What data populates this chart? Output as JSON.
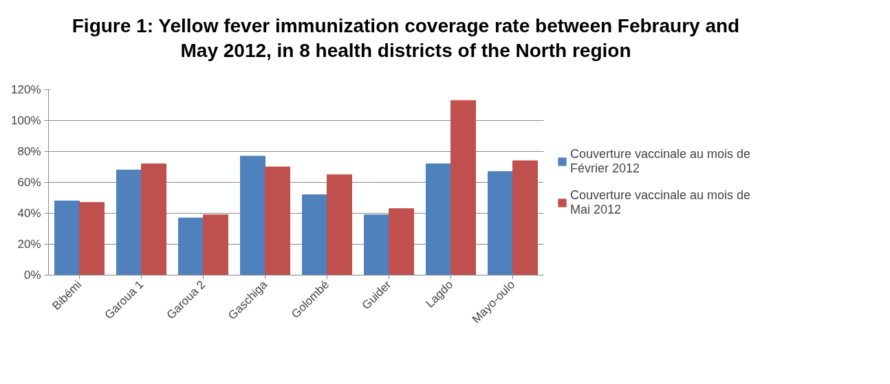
{
  "chart_data": {
    "type": "bar",
    "title": "Figure 1: Yellow fever immunization coverage rate between Febraury and May 2012, in 8 health districts of the North region",
    "categories": [
      "Bibémi",
      "Garoua 1",
      "Garoua 2",
      "Gaschiga",
      "Golombé",
      "Guider",
      "Lagdo",
      "Mayo-oulo"
    ],
    "series": [
      {
        "name": "Couverture vaccinale au mois de Février 2012",
        "color": "#4f81bd",
        "values": [
          48,
          68,
          37,
          77,
          52,
          39,
          72,
          67
        ]
      },
      {
        "name": "Couverture vaccinale au mois de Mai 2012",
        "color": "#c0504d",
        "values": [
          47,
          72,
          39,
          70,
          65,
          43,
          113,
          74
        ]
      }
    ],
    "ylim": [
      0,
      120
    ],
    "yticks": [
      {
        "value": 0,
        "label": "0%"
      },
      {
        "value": 20,
        "label": "20%"
      },
      {
        "value": 40,
        "label": "40%"
      },
      {
        "value": 60,
        "label": "60%"
      },
      {
        "value": 80,
        "label": "80%"
      },
      {
        "value": 100,
        "label": "100%"
      },
      {
        "value": 120,
        "label": "120%"
      }
    ],
    "grid": "y",
    "legend": "right"
  }
}
